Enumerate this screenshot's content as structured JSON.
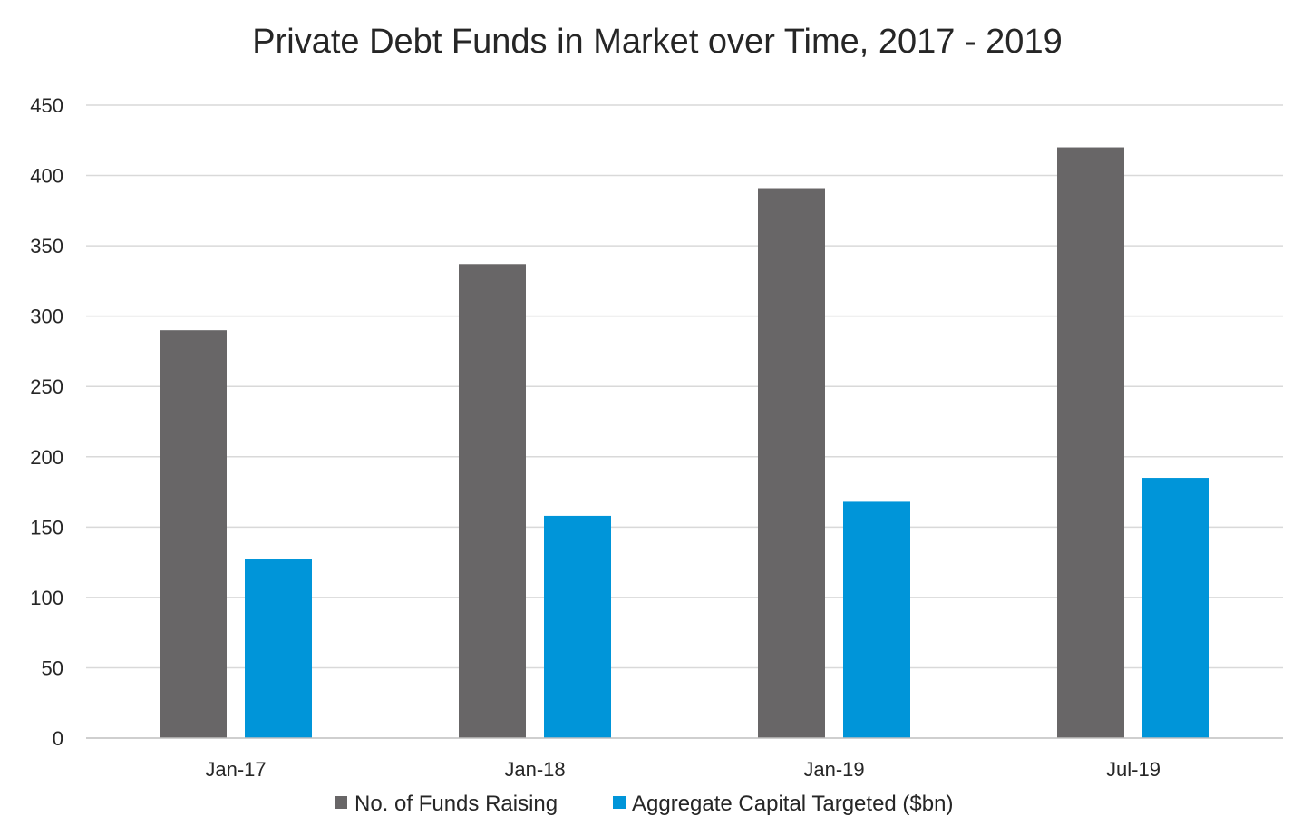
{
  "chart_data": {
    "type": "bar",
    "title": "Private Debt Funds in Market over Time, 2017 - 2019",
    "xlabel": "",
    "ylabel": "",
    "categories": [
      "Jan-17",
      "Jan-18",
      "Jan-19",
      "Jul-19"
    ],
    "series": [
      {
        "name": "No. of Funds Raising",
        "color": "#686667",
        "values": [
          290,
          337,
          391,
          420
        ]
      },
      {
        "name": "Aggregate Capital Targeted ($bn)",
        "color": "#0095d9",
        "values": [
          127,
          158,
          168,
          185
        ]
      }
    ],
    "ylim": [
      0,
      450
    ],
    "yticks": [
      0,
      50,
      100,
      150,
      200,
      250,
      300,
      350,
      400,
      450
    ],
    "grid": true,
    "legend_position": "bottom"
  }
}
